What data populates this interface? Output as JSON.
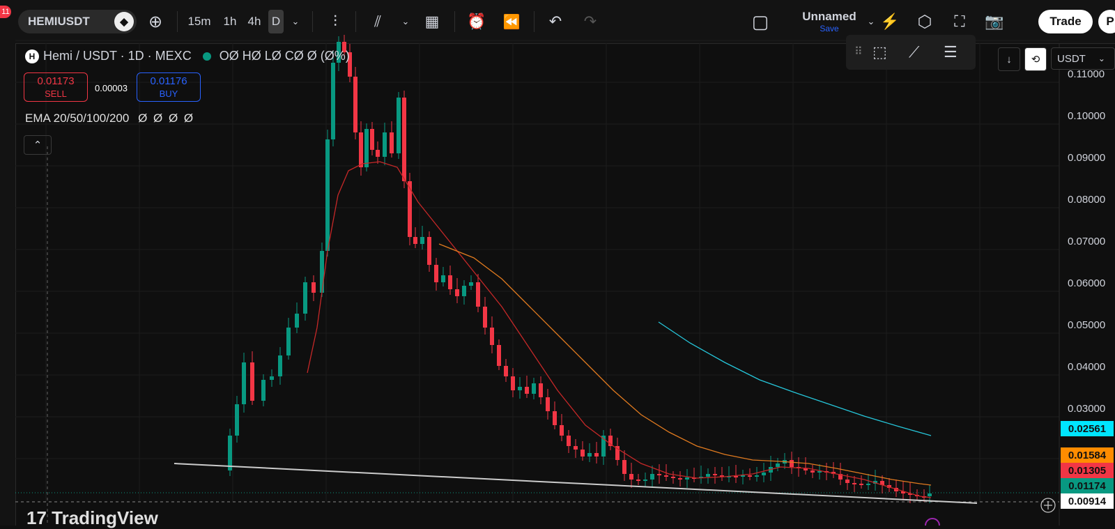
{
  "toolbar": {
    "notification_count": "11",
    "symbol": "HEMIUSDT",
    "intervals": [
      "15m",
      "1h",
      "4h",
      "D"
    ],
    "layout_name": "Unnamed",
    "save_label": "Save",
    "trade_label": "Trade",
    "partial_right": "P"
  },
  "legend": {
    "pair": "Hemi / USDT · 1D · MEXC",
    "ohlc": "OØ HØ LØ CØ Ø (Ø%)",
    "sell_price": "0.01173",
    "sell_label": "SELL",
    "spread": "0.00003",
    "buy_price": "0.01176",
    "buy_label": "BUY",
    "ema_label": "EMA 20/50/100/200",
    "ema_values": "Ø Ø Ø Ø",
    "collapse_glyph": "⌃"
  },
  "axis": {
    "currency": "USDT",
    "labels": [
      "0.11000",
      "0.10000",
      "0.09000",
      "0.08000",
      "0.07000",
      "0.06000",
      "0.05000",
      "0.04000",
      "0.03000"
    ]
  },
  "price_tags": [
    {
      "value": "0.02561",
      "color": "#00e5ff"
    },
    {
      "value": "0.01584",
      "color": "#ff8c00"
    },
    {
      "value": "0.01305",
      "color": "#f23645"
    },
    {
      "value": "0.01174",
      "color": "#089981"
    },
    {
      "value": "0.00914",
      "color": "#ffffff"
    }
  ],
  "brand": "TradingView",
  "colors": {
    "up": "#089981",
    "down": "#f23645",
    "ema20": "#c62828",
    "ema50": "#e07a1f",
    "ema100": "#26c6da",
    "trendline": "#cccccc"
  }
}
